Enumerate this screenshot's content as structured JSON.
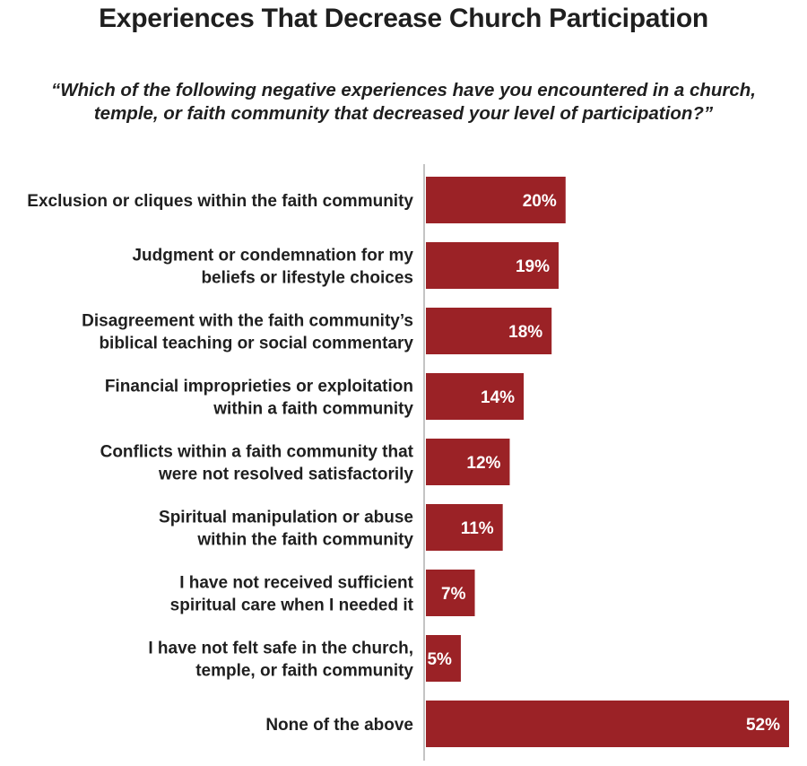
{
  "title": "Experiences That Decrease Church Participation",
  "subtitle": "“Which of the following negative experiences have you encountered in a church, temple, or faith community that decreased your level of participation?”",
  "colors": {
    "bar": "#9b2226",
    "bar_label": "#ffffff",
    "axis": "#c4c4c4",
    "text": "#1f1f1f"
  },
  "chart_data": {
    "type": "bar",
    "orientation": "horizontal",
    "title": "Experiences That Decrease Church Participation",
    "categories": [
      [
        "Exclusion or cliques within the faith community"
      ],
      [
        "Judgment or condemnation for my",
        "beliefs or lifestyle choices"
      ],
      [
        "Disagreement with the faith community’s",
        "biblical teaching or social commentary"
      ],
      [
        "Financial improprieties or exploitation",
        "within a faith community"
      ],
      [
        "Conflicts within a faith community that",
        "were not resolved satisfactorily"
      ],
      [
        "Spiritual manipulation or abuse",
        "within the faith community"
      ],
      [
        "I have not received sufficient",
        "spiritual care when I needed it"
      ],
      [
        "I have not felt safe in the church,",
        "temple, or faith community"
      ],
      [
        "None of the above"
      ]
    ],
    "values": [
      20,
      19,
      18,
      14,
      12,
      11,
      7,
      5,
      52
    ],
    "value_labels": [
      "20%",
      "19%",
      "18%",
      "14%",
      "12%",
      "11%",
      "7%",
      "5%",
      "52%"
    ],
    "unit": "%",
    "xlim": [
      0,
      52
    ],
    "grid": false,
    "legend": "none"
  }
}
